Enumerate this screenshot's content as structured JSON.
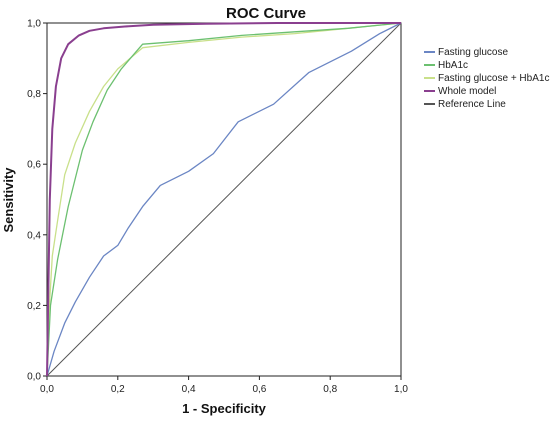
{
  "chart_data": {
    "type": "line",
    "title": "ROC Curve",
    "xlabel": "1 - Specificity",
    "ylabel": "Sensitivity",
    "xlim": [
      0,
      1
    ],
    "ylim": [
      0,
      1
    ],
    "xticks": [
      "0,0",
      "0,2",
      "0,4",
      "0,6",
      "0,8",
      "1,0"
    ],
    "yticks": [
      "0,0",
      "0,2",
      "0,4",
      "0,6",
      "0,8",
      "1,0"
    ],
    "grid": false,
    "legend_position": "right",
    "series": [
      {
        "name": "Fasting glucose",
        "color": "#6b86c4",
        "x": [
          0,
          0.02,
          0.05,
          0.08,
          0.12,
          0.16,
          0.2,
          0.23,
          0.27,
          0.32,
          0.4,
          0.47,
          0.54,
          0.64,
          0.74,
          0.86,
          0.94,
          1.0
        ],
        "y": [
          0,
          0.07,
          0.15,
          0.21,
          0.28,
          0.34,
          0.37,
          0.42,
          0.48,
          0.54,
          0.58,
          0.63,
          0.72,
          0.77,
          0.86,
          0.92,
          0.97,
          1.0
        ]
      },
      {
        "name": "HbA1c",
        "color": "#6cc070",
        "x": [
          0,
          0.01,
          0.03,
          0.06,
          0.1,
          0.13,
          0.17,
          0.21,
          0.27,
          0.4,
          0.55,
          0.7,
          0.85,
          1.0
        ],
        "y": [
          0,
          0.2,
          0.33,
          0.48,
          0.64,
          0.72,
          0.81,
          0.87,
          0.94,
          0.95,
          0.965,
          0.975,
          0.985,
          1.0
        ]
      },
      {
        "name": "Fasting glucose + HbA1c",
        "color": "#c9e08a",
        "x": [
          0,
          0.005,
          0.015,
          0.03,
          0.05,
          0.08,
          0.12,
          0.16,
          0.2,
          0.27,
          0.4,
          0.55,
          0.7,
          0.85,
          1.0
        ],
        "y": [
          0,
          0.17,
          0.34,
          0.44,
          0.57,
          0.66,
          0.75,
          0.82,
          0.87,
          0.93,
          0.945,
          0.96,
          0.97,
          0.985,
          1.0
        ]
      },
      {
        "name": "Whole model",
        "color": "#8a3f8f",
        "x": [
          0,
          0.003,
          0.008,
          0.015,
          0.025,
          0.04,
          0.06,
          0.09,
          0.12,
          0.16,
          0.22,
          0.3,
          0.45,
          0.65,
          1.0
        ],
        "y": [
          0,
          0.2,
          0.5,
          0.7,
          0.82,
          0.9,
          0.94,
          0.965,
          0.978,
          0.985,
          0.99,
          0.995,
          0.998,
          1.0,
          1.0
        ]
      },
      {
        "name": "Reference Line",
        "color": "#555555",
        "x": [
          0,
          1
        ],
        "y": [
          0,
          1
        ]
      }
    ]
  }
}
